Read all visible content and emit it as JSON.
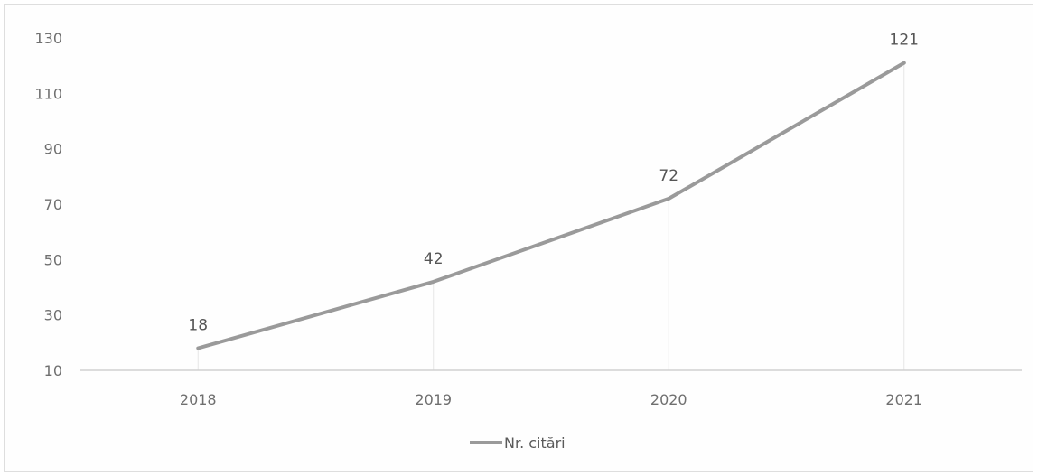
{
  "chart_data": {
    "type": "line",
    "categories": [
      "2018",
      "2019",
      "2020",
      "2021"
    ],
    "series": [
      {
        "name": "Nr. citări",
        "values": [
          18,
          42,
          72,
          121
        ]
      }
    ],
    "y_ticks": [
      10,
      30,
      50,
      70,
      90,
      110,
      130
    ],
    "ylim": [
      10,
      130
    ],
    "data_labels": [
      "18",
      "42",
      "72",
      "121"
    ],
    "legend_position": "bottom",
    "grid": false,
    "drop_lines": true,
    "line_color": "#9a9a9a",
    "axis_color": "#d0d0d0"
  }
}
